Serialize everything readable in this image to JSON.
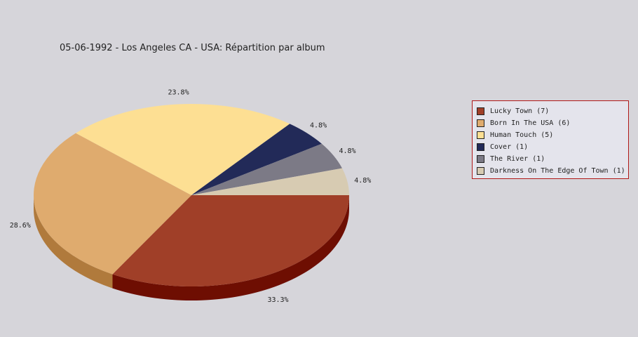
{
  "chart_data": {
    "type": "pie",
    "title": "05-06-1992 - Los Angeles CA - USA:  Répartition par album",
    "legend_position": "right",
    "slices": [
      {
        "label": "Lucky Town (7)",
        "value": 7,
        "percent_label": "33.3%",
        "color": "#a03f28",
        "side_color": "#6e0e02"
      },
      {
        "label": "Born In The USA (6)",
        "value": 6,
        "percent_label": "28.6%",
        "color": "#dfab6e",
        "side_color": "#b07a3c"
      },
      {
        "label": "Human Touch (5)",
        "value": 5,
        "percent_label": "23.8%",
        "color": "#fddf93",
        "side_color": "#c9a95a"
      },
      {
        "label": "Cover (1)",
        "value": 1,
        "percent_label": "4.8%",
        "color": "#222a58",
        "side_color": "#10143a"
      },
      {
        "label": "The River (1)",
        "value": 1,
        "percent_label": "4.8%",
        "color": "#7c7a86",
        "side_color": "#55535f"
      },
      {
        "label": "Darkness On The Edge Of Town (1)",
        "value": 1,
        "percent_label": "4.8%",
        "color": "#d7cbb2",
        "side_color": "#a89c84"
      }
    ]
  }
}
